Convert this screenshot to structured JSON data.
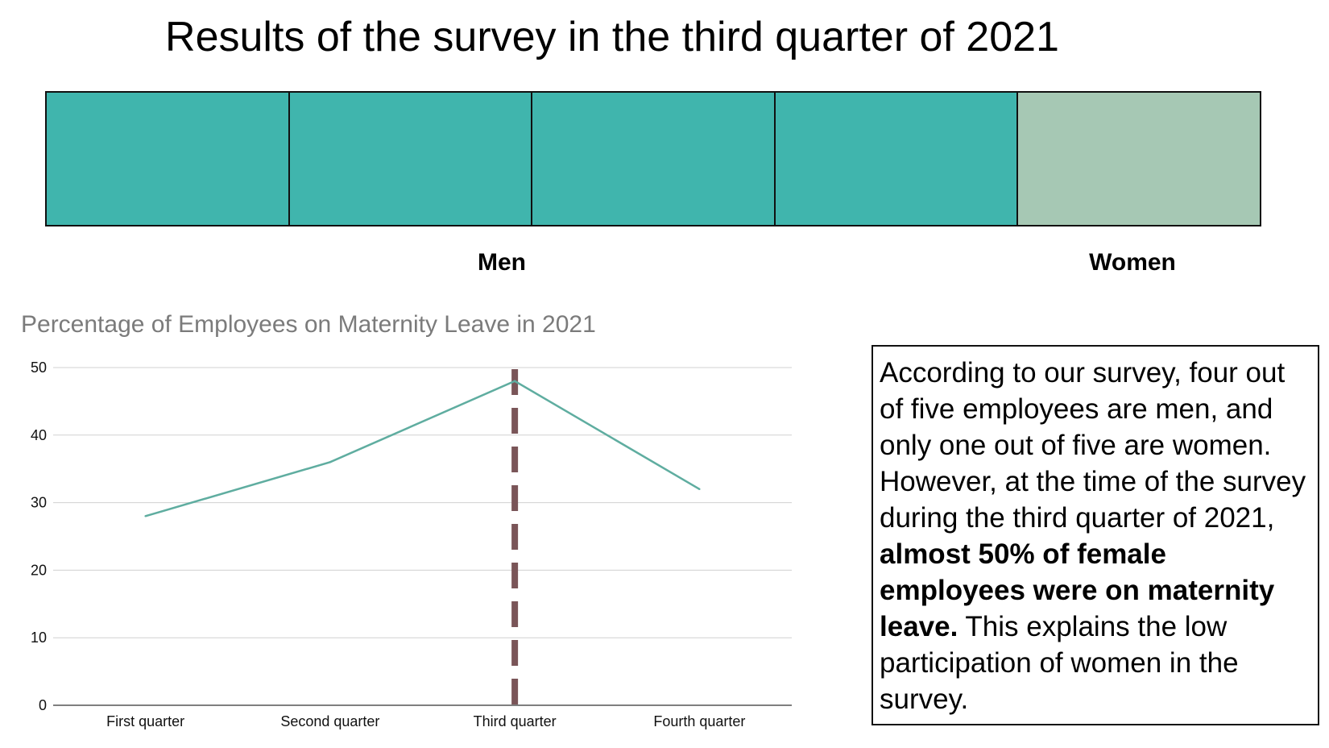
{
  "title": "Results of the survey in the third quarter of 2021",
  "composition_bar": {
    "segments": [
      {
        "group": "Men",
        "color": "#40b5ad"
      },
      {
        "group": "Men",
        "color": "#40b5ad"
      },
      {
        "group": "Men",
        "color": "#40b5ad"
      },
      {
        "group": "Men",
        "color": "#40b5ad"
      },
      {
        "group": "Women",
        "color": "#a6c8b4"
      }
    ],
    "labels": {
      "men": "Men",
      "women": "Women"
    }
  },
  "chart_data": {
    "type": "line",
    "title": "Percentage of Employees on Maternity Leave in 2021",
    "categories": [
      "First quarter",
      "Second quarter",
      "Third quarter",
      "Fourth quarter"
    ],
    "series": [
      {
        "values": [
          28,
          36,
          48,
          32
        ],
        "color": "#5fada0"
      }
    ],
    "ylim": [
      0,
      50
    ],
    "yticks": [
      0,
      10,
      20,
      30,
      40,
      50
    ],
    "grid": true,
    "highlight": {
      "category": "Third quarter",
      "style": "dashed vertical line",
      "color": "#7a5558"
    }
  },
  "note": {
    "text_before": "According to our survey, four out of five employees are men, and only one out of five are women. However, at the time of the survey during the third quarter of 2021, ",
    "text_bold": "almost 50% of female employees were on maternity leave.",
    "text_after": " This explains the low participation of women in the survey."
  }
}
